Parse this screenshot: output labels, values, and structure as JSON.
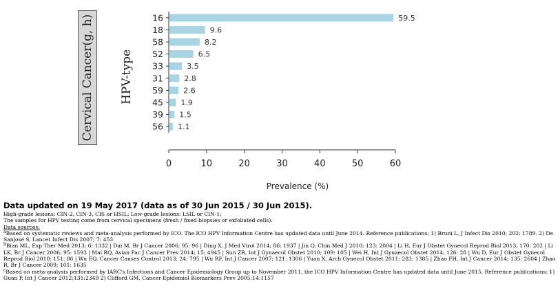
{
  "panel_label": "Cervical Cancer(g, h)",
  "chart_data": {
    "type": "bar",
    "orientation": "horizontal",
    "categories": [
      "16",
      "18",
      "58",
      "52",
      "33",
      "31",
      "59",
      "45",
      "39",
      "56"
    ],
    "values": [
      59.5,
      9.6,
      8.2,
      6.5,
      3.5,
      2.8,
      2.6,
      1.9,
      1.5,
      1.1
    ],
    "value_labels": [
      "59.5",
      "9.6",
      "8.2",
      "6.5",
      "3.5",
      "2.8",
      "2.6",
      "1.9",
      "1.5",
      "1.1"
    ],
    "title": "",
    "xlabel": "Prevalence (%)",
    "ylabel": "HPV-type",
    "xlim": [
      0,
      60
    ],
    "xticks": [
      0,
      10,
      20,
      30,
      40,
      50,
      60
    ],
    "grid": false,
    "bar_color": "#a8d4e4"
  },
  "notes": {
    "headline": "Data updated on 19 May 2017 (data as of 30 Jun 2015 / 30 Jun 2015).",
    "lesions": "High-grade lesions: CIN-2, CIN-3, CIS or HSIL; Low-grade lesions: LSIL or CIN-1;",
    "samples": "The samples for HPV testing come from cervical specimens (fresh / fixed biopsies or exfoliated cells).",
    "sources_title": "Data sources:",
    "source_a_mark": "a",
    "source_a": "Based on systematic reviews and meta-analysis performed by ICO. The ICO HPV Information Centre has updated data until June 2014. Reference publications: 1) Bruni L, J Infect Dis 2010; 202: 1789. 2) De Sanjosé S, Lancet Infect Dis 2007; 7: 453",
    "source_b_mark": "b",
    "source_b": "Bian ML, Exp Ther Med 2013; 6: 1332 | Dai M, Br J Cancer 2006; 95: 96 | Ding X, J Med Virol 2014; 86: 1937 | Jin Q, Chin Med J 2010; 123: 2004 | Li H, Eur J Obstet Gynecol Reprod Biol 2013; 170: 202 | Li LK, Br J Cancer 2006; 95: 1593 | Mai RQ, Asian Pac J Cancer Prev 2014; 15: 4945 | Sun ZR, Int J Gynaecol Obstet 2010; 109: 105 | Wei H, Int J Gynaecol Obstet 2014; 126: 28 | Wu D, Eur J Obstet Gynecol Reprod Biol 2010; 151: 86 | Wu EQ, Cancer Causes Control 2013; 24: 795 | Wu RF, Int J Cancer 2007; 121: 1306 | Yuan X, Arch Gynecol Obstet 2011; 283: 1385 | Zhao FH, Int J Cancer 2014; 135: 2604 | Zhao R, Br J Cancer 2009; 101: 1635",
    "source_c_mark": "c",
    "source_c": "Based on meta-analysis performed by IARC's Infections and Cancer Epidemiology Group up to November 2011, the ICO HPV Information Centre has updated data until June 2015. Reference publications: 1) Guan P, Int J Cancer 2012;131:2349 2) Clifford GM, Cancer Epidemiol Biomarkers Prev 2005;14:1157"
  }
}
